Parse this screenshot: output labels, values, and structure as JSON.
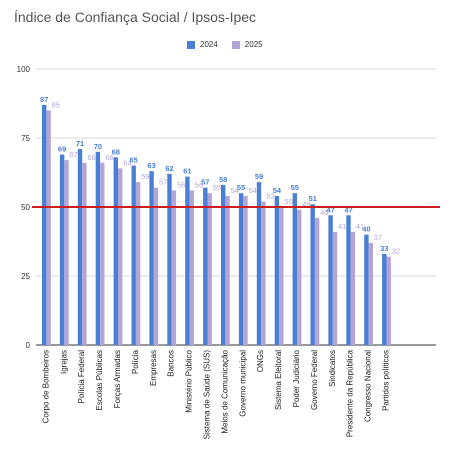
{
  "chart_data": {
    "type": "bar",
    "title": "Índice de Confiança Social / Ipsos-Ipec",
    "categories": [
      "Corpo de Bombeiros",
      "Igrejas",
      "Polícia Federal",
      "Escolas Públicas",
      "Forças Armadas",
      "Polícia",
      "Empresas",
      "Bancos",
      "Ministério Público",
      "Sistema de Saúde (SUS)",
      "Meios de Comunicação",
      "Governo municipal",
      "ONGs",
      "Sistema Eleitoral",
      "Poder Judiciário",
      "Governo Federal",
      "Sindicatos",
      "Presidente da República",
      "Congresso Nacional",
      "Partidos políticos"
    ],
    "series": [
      {
        "name": "2024",
        "color": "#4a7fd6",
        "values": [
          87,
          69,
          71,
          70,
          68,
          65,
          63,
          62,
          61,
          57,
          58,
          55,
          59,
          54,
          55,
          51,
          47,
          47,
          40,
          33
        ]
      },
      {
        "name": "2025",
        "color": "#b3a6d6",
        "values": [
          85,
          67,
          66,
          66,
          64,
          59,
          57,
          56,
          56,
          55,
          54,
          54,
          52,
          50,
          49,
          46,
          41,
          41,
          37,
          32
        ]
      }
    ],
    "y_ticks": [
      "0",
      "25",
      "50",
      "75",
      "100"
    ],
    "ylim": [
      0,
      100
    ],
    "reference_line": {
      "value": 50,
      "color": "#cc1e1e"
    },
    "grid": true,
    "legend_position": "top"
  }
}
